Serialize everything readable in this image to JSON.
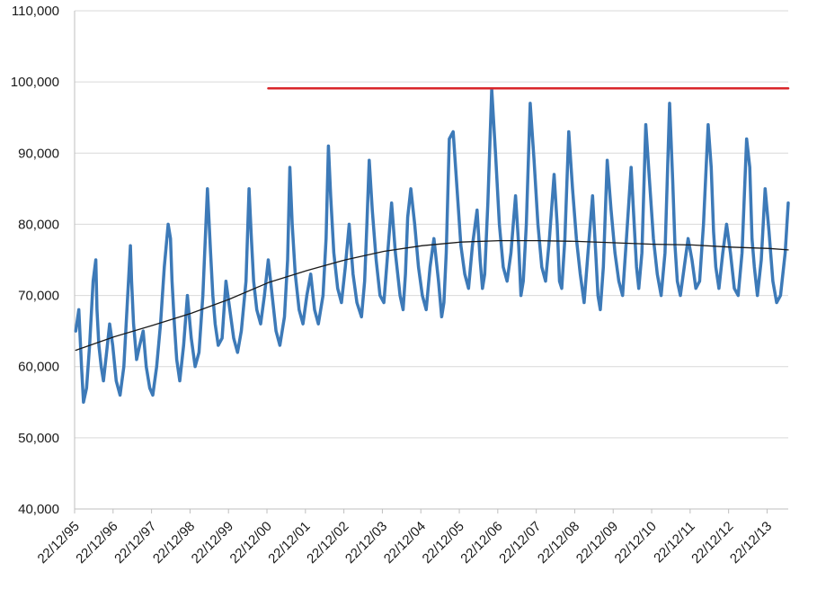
{
  "chart_data": {
    "type": "line",
    "title": "",
    "xlabel": "",
    "ylabel": "",
    "ylim": [
      40000,
      110000
    ],
    "y_ticks": [
      40000,
      50000,
      60000,
      70000,
      80000,
      90000,
      100000,
      110000
    ],
    "y_tick_labels": [
      "40,000",
      "50,000",
      "60,000",
      "70,000",
      "80,000",
      "90,000",
      "100,000",
      "110,000"
    ],
    "x_tick_labels": [
      "22/12/95",
      "22/12/96",
      "22/12/97",
      "22/12/98",
      "22/12/99",
      "22/12/00",
      "22/12/01",
      "22/12/02",
      "22/12/03",
      "22/12/04",
      "22/12/05",
      "22/12/06",
      "22/12/07",
      "22/12/08",
      "22/12/09",
      "22/12/10",
      "22/12/11",
      "22/12/12",
      "22/12/13"
    ],
    "xlim": [
      1995.97,
      2014.5
    ],
    "grid": "horizontal",
    "legend": "none",
    "series": [
      {
        "role": "data",
        "color": "#3d7ab8",
        "x": [
          1996.0,
          1996.08,
          1996.15,
          1996.2,
          1996.28,
          1996.36,
          1996.45,
          1996.52,
          1996.55,
          1996.6,
          1996.66,
          1996.72,
          1996.8,
          1996.88,
          1996.96,
          1997.05,
          1997.15,
          1997.25,
          1997.32,
          1997.38,
          1997.42,
          1997.45,
          1997.5,
          1997.58,
          1997.66,
          1997.75,
          1997.83,
          1997.92,
          1998.0,
          1998.1,
          1998.2,
          1998.3,
          1998.4,
          1998.46,
          1998.5,
          1998.56,
          1998.62,
          1998.7,
          1998.8,
          1998.9,
          1999.0,
          1999.1,
          1999.2,
          1999.3,
          1999.42,
          1999.5,
          1999.56,
          1999.62,
          1999.7,
          1999.8,
          1999.9,
          2000.0,
          2000.1,
          2000.2,
          2000.3,
          2000.42,
          2000.5,
          2000.56,
          2000.62,
          2000.7,
          2000.8,
          2000.9,
          2001.0,
          2001.1,
          2001.2,
          2001.3,
          2001.42,
          2001.5,
          2001.56,
          2001.62,
          2001.7,
          2001.8,
          2001.9,
          2002.0,
          2002.1,
          2002.2,
          2002.3,
          2002.42,
          2002.5,
          2002.56,
          2002.62,
          2002.7,
          2002.8,
          2002.9,
          2003.0,
          2003.1,
          2003.2,
          2003.3,
          2003.42,
          2003.5,
          2003.56,
          2003.62,
          2003.7,
          2003.8,
          2003.9,
          2004.0,
          2004.1,
          2004.2,
          2004.3,
          2004.42,
          2004.5,
          2004.56,
          2004.62,
          2004.7,
          2004.8,
          2004.9,
          2005.0,
          2005.1,
          2005.2,
          2005.3,
          2005.42,
          2005.5,
          2005.56,
          2005.62,
          2005.7,
          2005.8,
          2005.9,
          2006.0,
          2006.1,
          2006.2,
          2006.3,
          2006.42,
          2006.5,
          2006.56,
          2006.62,
          2006.7,
          2006.8,
          2006.9,
          2007.0,
          2007.1,
          2007.2,
          2007.3,
          2007.42,
          2007.5,
          2007.56,
          2007.62,
          2007.7,
          2007.8,
          2007.9,
          2008.0,
          2008.1,
          2008.2,
          2008.3,
          2008.42,
          2008.5,
          2008.56,
          2008.62,
          2008.7,
          2008.8,
          2008.9,
          2009.0,
          2009.1,
          2009.2,
          2009.3,
          2009.42,
          2009.5,
          2009.56,
          2009.62,
          2009.7,
          2009.8,
          2009.9,
          2010.0,
          2010.1,
          2010.2,
          2010.3,
          2010.42,
          2010.5,
          2010.56,
          2010.62,
          2010.7,
          2010.8,
          2010.9,
          2011.0,
          2011.1,
          2011.2,
          2011.3,
          2011.42,
          2011.5,
          2011.56,
          2011.62,
          2011.7,
          2011.8,
          2011.9,
          2012.0,
          2012.1,
          2012.2,
          2012.3,
          2012.42,
          2012.5,
          2012.56,
          2012.62,
          2012.7,
          2012.8,
          2012.9,
          2013.0,
          2013.1,
          2013.2,
          2013.3,
          2013.42,
          2013.5,
          2013.56,
          2013.62,
          2013.7,
          2013.8,
          2013.9,
          2014.0,
          2014.1,
          2014.2,
          2014.3,
          2014.42,
          2014.5
        ],
        "y": [
          65000,
          68000,
          60000,
          55000,
          57000,
          63000,
          72000,
          75000,
          68000,
          63000,
          60000,
          58000,
          62000,
          66000,
          63000,
          58000,
          56000,
          60000,
          67000,
          73000,
          77000,
          72000,
          66000,
          61000,
          63000,
          65000,
          60000,
          57000,
          56000,
          60000,
          66000,
          74000,
          80000,
          78000,
          72000,
          66000,
          61000,
          58000,
          63000,
          70000,
          64000,
          60000,
          62000,
          70000,
          85000,
          76000,
          70000,
          66000,
          63000,
          64000,
          72000,
          68000,
          64000,
          62000,
          65000,
          72000,
          85000,
          78000,
          72000,
          68000,
          66000,
          70000,
          75000,
          70000,
          65000,
          63000,
          67000,
          75000,
          88000,
          80000,
          73000,
          68000,
          66000,
          70000,
          73000,
          68000,
          66000,
          70000,
          78000,
          91000,
          84000,
          76000,
          71000,
          69000,
          74000,
          80000,
          73000,
          69000,
          67000,
          72000,
          80000,
          89000,
          82000,
          75000,
          70000,
          69000,
          76000,
          83000,
          76000,
          70000,
          68000,
          73000,
          81000,
          85000,
          80000,
          74000,
          70000,
          68000,
          74000,
          78000,
          72000,
          67000,
          69000,
          76000,
          92000,
          93000,
          85000,
          77000,
          73000,
          71000,
          77000,
          82000,
          75000,
          71000,
          73000,
          83000,
          99000,
          90000,
          80000,
          74000,
          72000,
          76000,
          84000,
          77000,
          70000,
          72000,
          80000,
          97000,
          89000,
          80000,
          74000,
          72000,
          78000,
          87000,
          80000,
          72000,
          71000,
          78000,
          93000,
          85000,
          78000,
          73000,
          69000,
          76000,
          84000,
          76000,
          70000,
          68000,
          74000,
          89000,
          82000,
          76000,
          72000,
          70000,
          78000,
          88000,
          80000,
          74000,
          71000,
          76000,
          94000,
          86000,
          78000,
          73000,
          70000,
          76000,
          97000,
          86000,
          77000,
          72000,
          70000,
          74000,
          78000,
          75000,
          71000,
          72000,
          80000,
          94000,
          88000,
          79000,
          74000,
          71000,
          76000,
          80000,
          76000,
          71000,
          70000,
          76000,
          92000,
          88000,
          78000,
          74000,
          70000,
          75000,
          85000,
          79000,
          72000,
          69000,
          70000,
          76000,
          83000
        ]
      },
      {
        "role": "trend",
        "color": "#1a1a1a",
        "x": [
          1996.0,
          1997.0,
          1998.0,
          1999.0,
          2000.0,
          2001.0,
          2002.0,
          2003.0,
          2004.0,
          2005.0,
          2006.0,
          2007.0,
          2008.0,
          2009.0,
          2010.0,
          2011.0,
          2012.0,
          2013.0,
          2014.0,
          2014.5
        ],
        "y": [
          62300,
          64200,
          65800,
          67500,
          69500,
          71800,
          73500,
          75000,
          76200,
          77000,
          77500,
          77700,
          77700,
          77600,
          77400,
          77200,
          77100,
          76800,
          76600,
          76400
        ]
      },
      {
        "role": "reference",
        "color": "#d9262a",
        "x": [
          2001.0,
          2014.5
        ],
        "y": [
          99100,
          99100
        ]
      }
    ]
  }
}
